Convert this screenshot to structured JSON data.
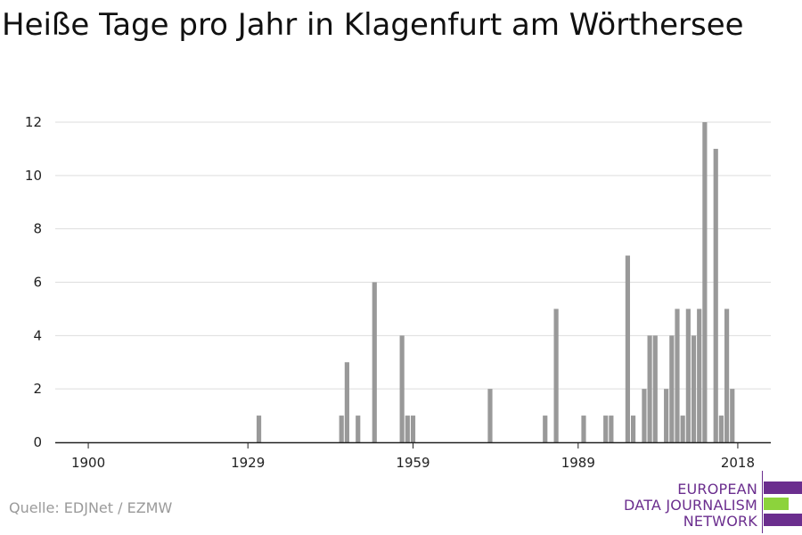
{
  "chart_data": {
    "type": "bar",
    "title": "Heiße Tage pro Jahr in Klagenfurt am Wörthersee",
    "xlabel": "",
    "ylabel": "",
    "x_ticks": [
      1900,
      1929,
      1959,
      1989,
      2018
    ],
    "y_ticks": [
      0,
      2,
      4,
      6,
      8,
      10,
      12
    ],
    "xlim": [
      1894,
      2024
    ],
    "ylim": [
      0,
      12
    ],
    "bar_color": "#999999",
    "grid": true,
    "x": [
      1931,
      1946,
      1947,
      1949,
      1952,
      1957,
      1958,
      1959,
      1973,
      1983,
      1985,
      1990,
      1994,
      1995,
      1998,
      1999,
      2001,
      2002,
      2003,
      2005,
      2006,
      2007,
      2008,
      2009,
      2010,
      2011,
      2012,
      2013,
      2014,
      2015,
      2016,
      2017,
      2018
    ],
    "values": [
      1,
      1,
      3,
      1,
      6,
      4,
      1,
      1,
      2,
      1,
      5,
      1,
      1,
      1,
      7,
      1,
      2,
      4,
      4,
      2,
      4,
      5,
      1,
      5,
      4,
      5,
      12,
      0,
      11,
      1,
      5,
      2,
      0
    ]
  },
  "source": "Quelle: EDJNet / EZMW",
  "logo": {
    "line1": "EUROPEAN",
    "line2": "DATA JOURNALISM",
    "line3": "NETWORK",
    "colors": {
      "purple": "#6b2e8e",
      "green": "#8cd33c"
    }
  }
}
